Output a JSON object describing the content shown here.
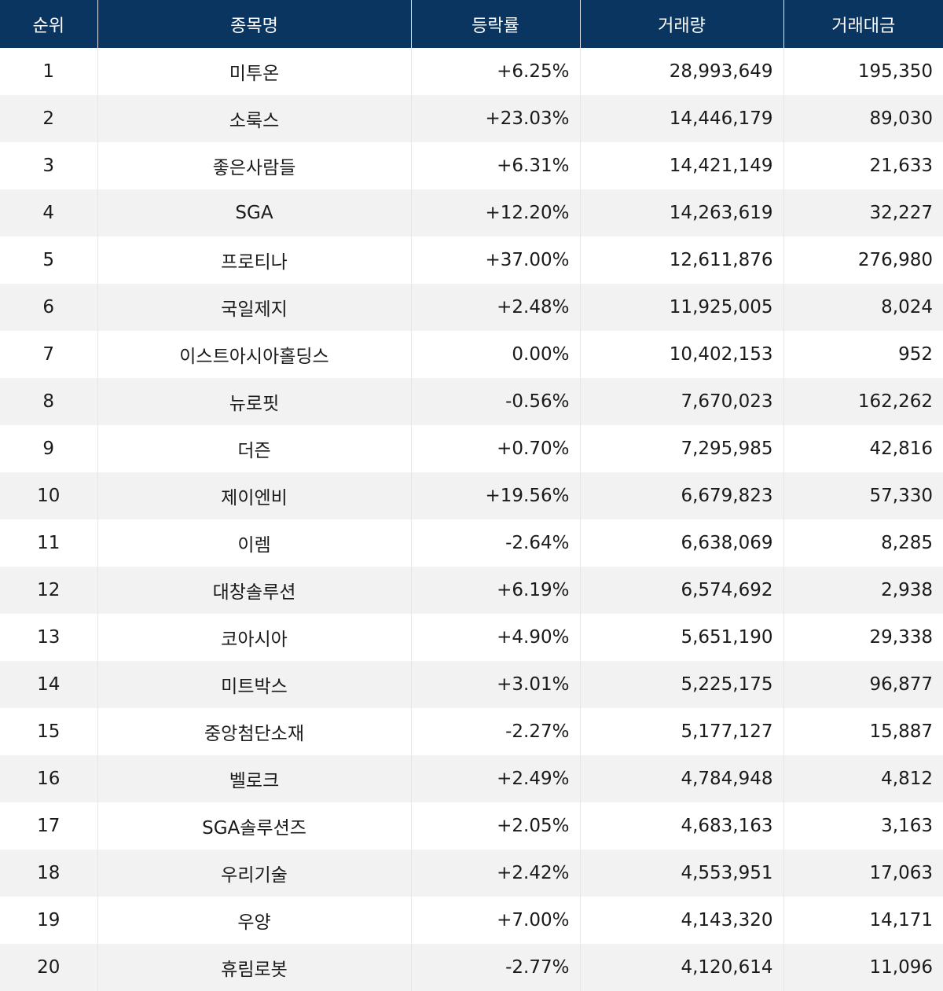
{
  "table": {
    "headers": [
      "순위",
      "종목명",
      "등락률",
      "거래량",
      "거래대금"
    ],
    "rows": [
      {
        "rank": "1",
        "name": "미투온",
        "change": "+6.25%",
        "volume": "28,993,649",
        "amount": "195,350"
      },
      {
        "rank": "2",
        "name": "소룩스",
        "change": "+23.03%",
        "volume": "14,446,179",
        "amount": "89,030"
      },
      {
        "rank": "3",
        "name": "좋은사람들",
        "change": "+6.31%",
        "volume": "14,421,149",
        "amount": "21,633"
      },
      {
        "rank": "4",
        "name": "SGA",
        "change": "+12.20%",
        "volume": "14,263,619",
        "amount": "32,227"
      },
      {
        "rank": "5",
        "name": "프로티나",
        "change": "+37.00%",
        "volume": "12,611,876",
        "amount": "276,980"
      },
      {
        "rank": "6",
        "name": "국일제지",
        "change": "+2.48%",
        "volume": "11,925,005",
        "amount": "8,024"
      },
      {
        "rank": "7",
        "name": "이스트아시아홀딩스",
        "change": "0.00%",
        "volume": "10,402,153",
        "amount": "952"
      },
      {
        "rank": "8",
        "name": "뉴로핏",
        "change": "-0.56%",
        "volume": "7,670,023",
        "amount": "162,262"
      },
      {
        "rank": "9",
        "name": "더즌",
        "change": "+0.70%",
        "volume": "7,295,985",
        "amount": "42,816"
      },
      {
        "rank": "10",
        "name": "제이엔비",
        "change": "+19.56%",
        "volume": "6,679,823",
        "amount": "57,330"
      },
      {
        "rank": "11",
        "name": "이렘",
        "change": "-2.64%",
        "volume": "6,638,069",
        "amount": "8,285"
      },
      {
        "rank": "12",
        "name": "대창솔루션",
        "change": "+6.19%",
        "volume": "6,574,692",
        "amount": "2,938"
      },
      {
        "rank": "13",
        "name": "코아시아",
        "change": "+4.90%",
        "volume": "5,651,190",
        "amount": "29,338"
      },
      {
        "rank": "14",
        "name": "미트박스",
        "change": "+3.01%",
        "volume": "5,225,175",
        "amount": "96,877"
      },
      {
        "rank": "15",
        "name": "중앙첨단소재",
        "change": "-2.27%",
        "volume": "5,177,127",
        "amount": "15,887"
      },
      {
        "rank": "16",
        "name": "벨로크",
        "change": "+2.49%",
        "volume": "4,784,948",
        "amount": "4,812"
      },
      {
        "rank": "17",
        "name": "SGA솔루션즈",
        "change": "+2.05%",
        "volume": "4,683,163",
        "amount": "3,163"
      },
      {
        "rank": "18",
        "name": "우리기술",
        "change": "+2.42%",
        "volume": "4,553,951",
        "amount": "17,063"
      },
      {
        "rank": "19",
        "name": "우양",
        "change": "+7.00%",
        "volume": "4,143,320",
        "amount": "14,171"
      },
      {
        "rank": "20",
        "name": "휴림로봇",
        "change": "-2.77%",
        "volume": "4,120,614",
        "amount": "11,096"
      }
    ]
  },
  "colors": {
    "header_bg": "#0b3561",
    "header_text": "#ffffff",
    "row_alt_bg": "#f2f2f2"
  }
}
